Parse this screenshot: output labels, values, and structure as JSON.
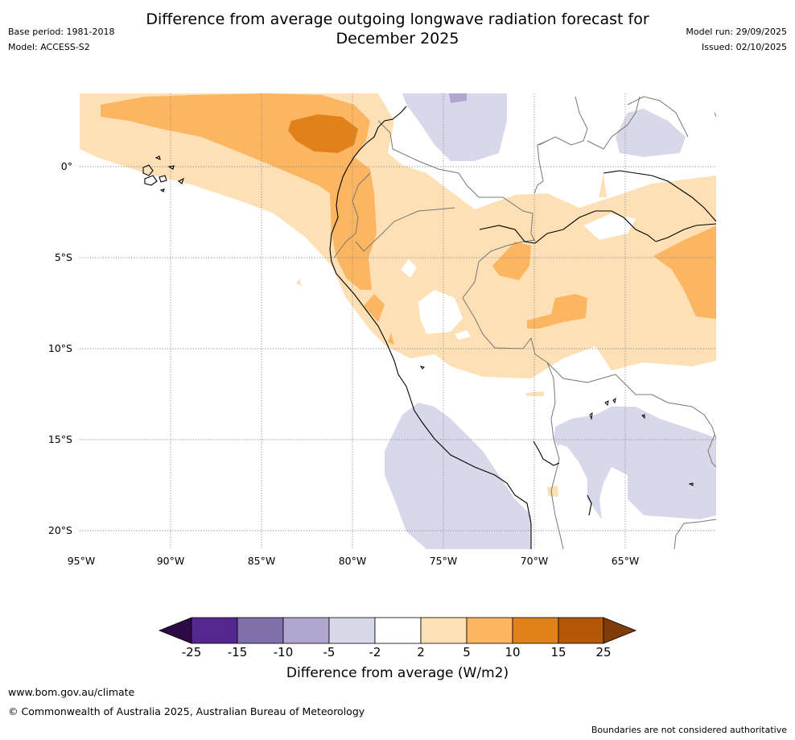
{
  "title_line1": "Difference from average outgoing longwave radiation forecast for",
  "title_line2": "December 2025",
  "base_period": "Base period: 1981-2018",
  "model": "Model: ACCESS-S2",
  "model_run": "Model run: 29/09/2025",
  "issued": "Issued: 02/10/2025",
  "lat_labels": [
    "0°",
    "5°S",
    "10°S",
    "15°S",
    "20°S"
  ],
  "lon_labels": [
    "95°W",
    "90°W",
    "85°W",
    "80°W",
    "75°W",
    "70°W",
    "65°W"
  ],
  "colorbar": {
    "labels": [
      "-25",
      "-15",
      "-10",
      "-5",
      "-2",
      "2",
      "5",
      "10",
      "15",
      "25"
    ],
    "colors": [
      "#2d0a45",
      "#54278f",
      "#7f6fab",
      "#b0a6cf",
      "#d9d8ea",
      "#ffffff",
      "#fde0b5",
      "#fcb662",
      "#e1811a",
      "#b35806",
      "#7f3b08"
    ],
    "title": "Difference from average (W/m2)"
  },
  "footer": {
    "url": "www.bom.gov.au/climate",
    "copyright": "© Commonwealth of Australia 2025, Australian Bureau of Meteorology",
    "disclaimer": "Boundaries are not considered authoritative"
  }
}
